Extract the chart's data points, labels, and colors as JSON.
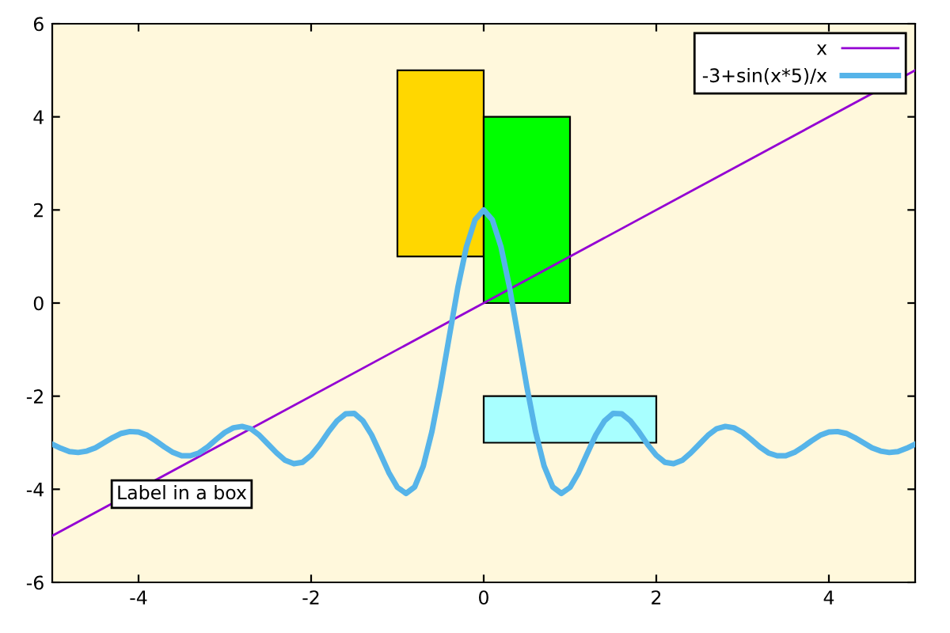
{
  "chart_data": {
    "type": "line",
    "xlim": [
      -5,
      5
    ],
    "ylim": [
      -6,
      6
    ],
    "xticks": [
      -4,
      -2,
      0,
      2,
      4
    ],
    "yticks": [
      -6,
      -4,
      -2,
      0,
      2,
      4,
      6
    ],
    "grid": false,
    "legend": "top right",
    "marker": "none",
    "annotations": [
      "Label in a box"
    ],
    "series": [
      {
        "type": "area",
        "color": "#ffd700",
        "x": [
          -1,
          -1,
          0,
          0
        ],
        "values": [
          1,
          5,
          5,
          1
        ]
      },
      {
        "type": "area",
        "color": "#00ff00",
        "x": [
          0,
          0,
          1,
          1
        ],
        "values": [
          0,
          4,
          4,
          0
        ]
      },
      {
        "type": "area",
        "color": "#a8ffff",
        "x": [
          0,
          0,
          2,
          2
        ],
        "values": [
          -3,
          -2,
          -2,
          -3
        ]
      },
      {
        "name": "x",
        "color": "#9400d3",
        "x": [
          -5,
          5
        ],
        "values": [
          -5,
          5
        ]
      },
      {
        "name": "-3+sin(x*5)/x",
        "color": "#56b4e9",
        "x": [
          -5,
          -4.9,
          -4.8,
          -4.7,
          -4.6,
          -4.5,
          -4.4,
          -4.3,
          -4.2,
          -4.1,
          -4,
          -3.9,
          -3.8,
          -3.7,
          -3.6,
          -3.5,
          -3.4,
          -3.3,
          -3.2,
          -3.1,
          -3,
          -2.9,
          -2.8,
          -2.7,
          -2.6,
          -2.5,
          -2.4,
          -2.3,
          -2.2,
          -2.1,
          -2,
          -1.9,
          -1.8,
          -1.7,
          -1.6,
          -1.5,
          -1.4,
          -1.3,
          -1.2,
          -1.1,
          -1,
          -0.9,
          -0.8,
          -0.7,
          -0.6,
          -0.5,
          -0.4,
          -0.3,
          -0.2,
          -0.1,
          0,
          0.1,
          0.2,
          0.3,
          0.4,
          0.5,
          0.6,
          0.7,
          0.8,
          0.9,
          1,
          1.1,
          1.2,
          1.3,
          1.4,
          1.5,
          1.6,
          1.7,
          1.8,
          1.9,
          2,
          2.1,
          2.2,
          2.3,
          2.4,
          2.5,
          2.6,
          2.7,
          2.8,
          2.9,
          3,
          3.1,
          3.2,
          3.3,
          3.4,
          3.5,
          3.6,
          3.7,
          3.8,
          3.9,
          4,
          4.1,
          4.2,
          4.3,
          4.4,
          4.5,
          4.6,
          4.7,
          4.8,
          4.9,
          5
        ],
        "values": [
          -3.03,
          -3.12,
          -3.19,
          -3.21,
          -3.18,
          -3.11,
          -3.0,
          -2.89,
          -2.8,
          -2.76,
          -2.77,
          -2.84,
          -2.96,
          -3.09,
          -3.21,
          -3.28,
          -3.28,
          -3.22,
          -3.09,
          -2.93,
          -2.78,
          -2.68,
          -2.65,
          -2.7,
          -2.84,
          -3.03,
          -3.22,
          -3.38,
          -3.45,
          -3.42,
          -3.27,
          -3.04,
          -2.77,
          -2.53,
          -2.38,
          -2.37,
          -2.53,
          -2.83,
          -3.23,
          -3.64,
          -3.96,
          -4.09,
          -3.95,
          -3.5,
          -2.76,
          -1.8,
          -0.73,
          0.33,
          1.21,
          1.79,
          2.0,
          1.79,
          1.21,
          0.33,
          -0.73,
          -1.8,
          -2.76,
          -3.5,
          -3.95,
          -4.09,
          -3.96,
          -3.64,
          -3.23,
          -2.83,
          -2.53,
          -2.37,
          -2.38,
          -2.53,
          -2.77,
          -3.04,
          -3.27,
          -3.42,
          -3.45,
          -3.38,
          -3.22,
          -3.03,
          -2.84,
          -2.7,
          -2.65,
          -2.68,
          -2.78,
          -2.93,
          -3.09,
          -3.22,
          -3.28,
          -3.28,
          -3.21,
          -3.09,
          -2.96,
          -2.84,
          -2.77,
          -2.76,
          -2.8,
          -2.89,
          -3.0,
          -3.11,
          -3.18,
          -3.21,
          -3.19,
          -3.12,
          -3.03
        ]
      }
    ]
  }
}
